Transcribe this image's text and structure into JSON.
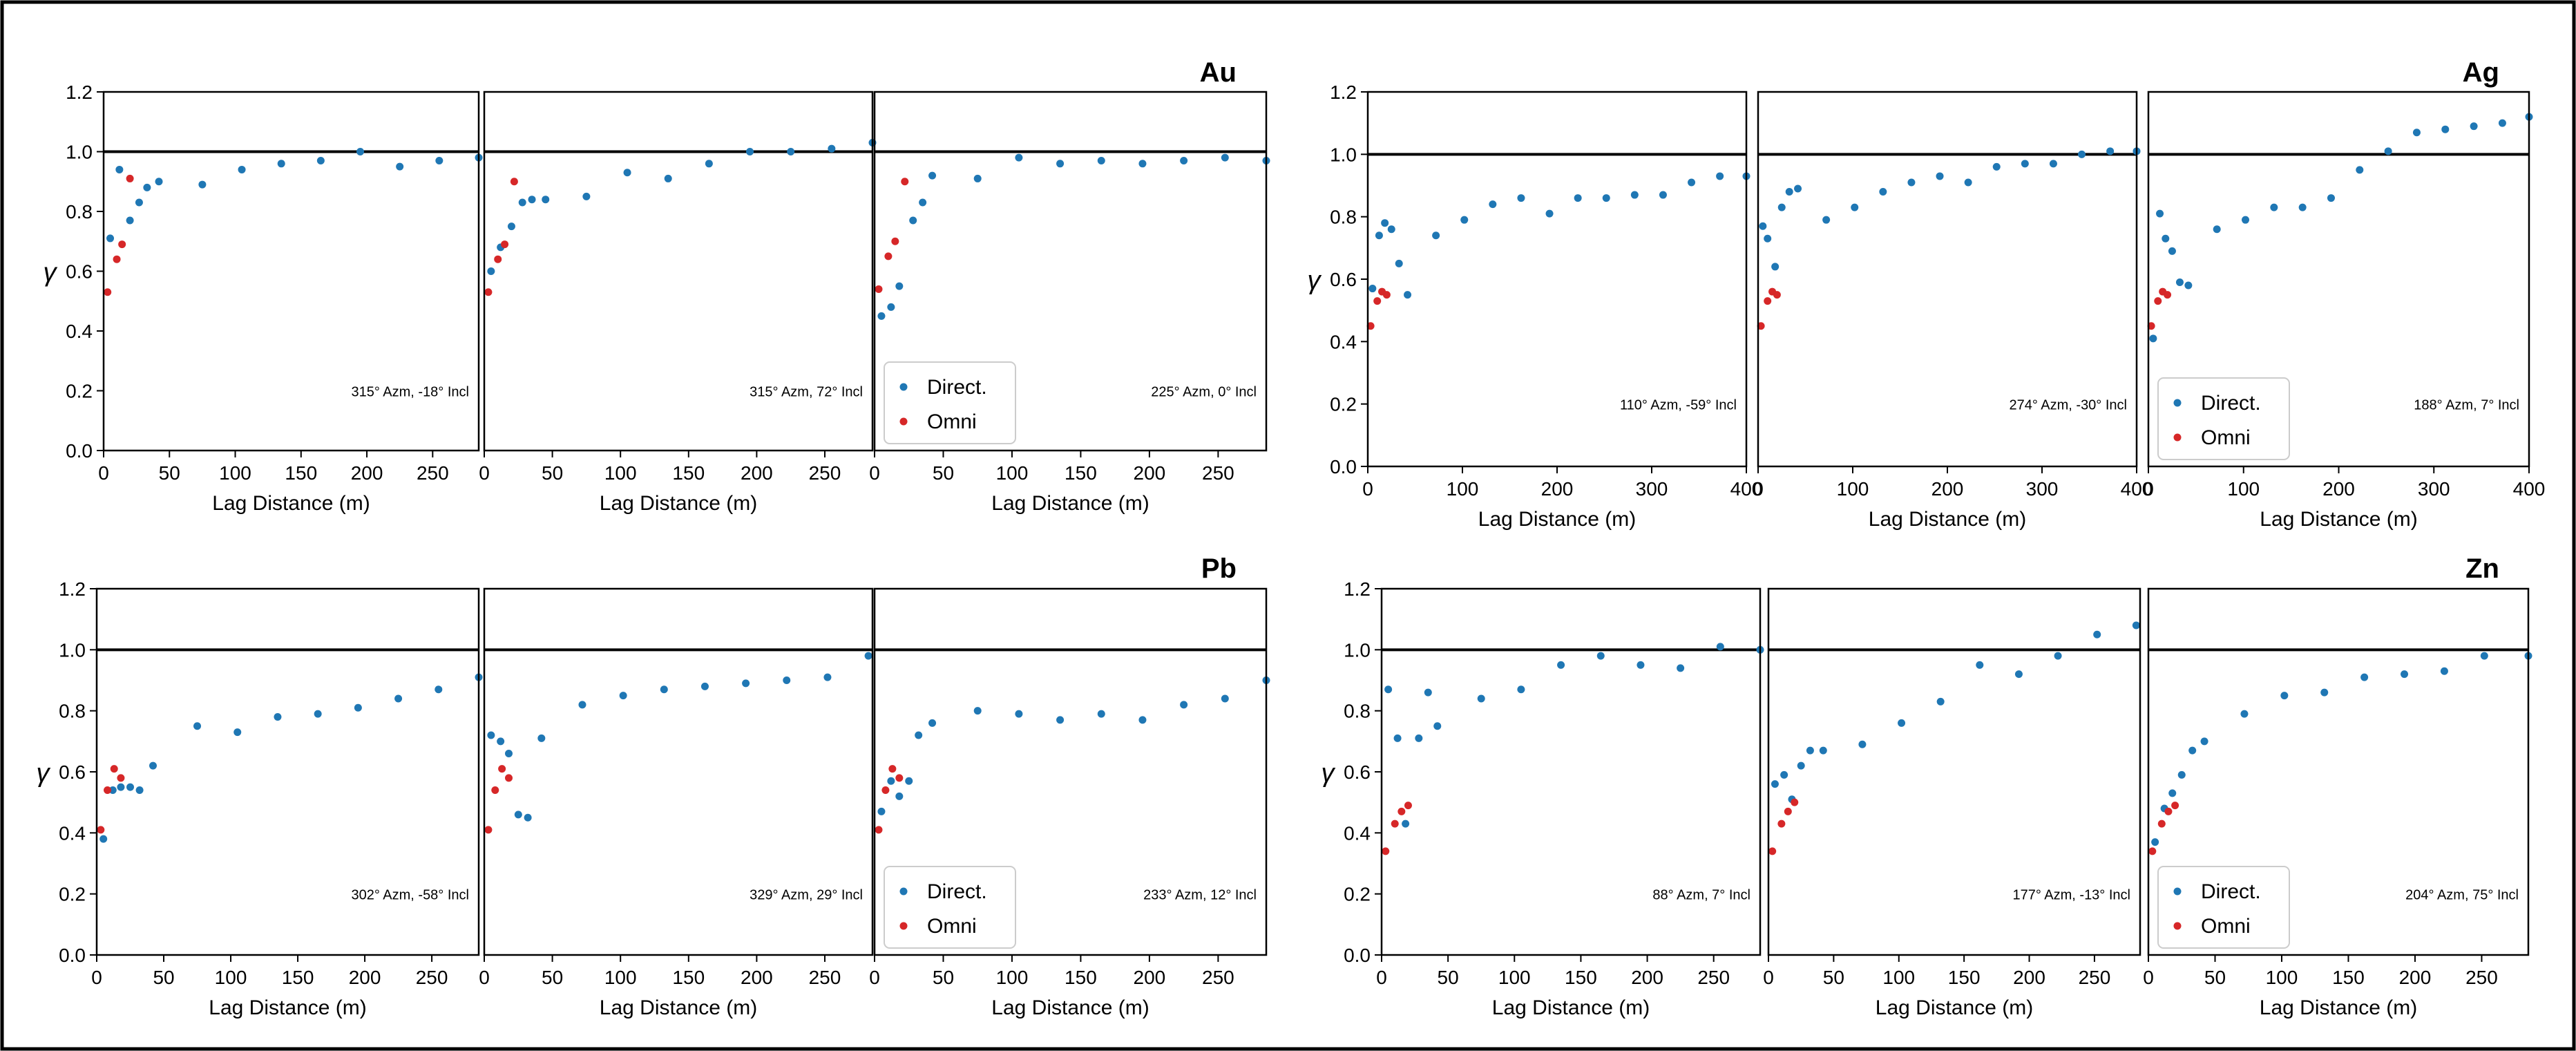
{
  "figure": {
    "border_color": "#000000",
    "background": "#ffffff"
  },
  "colors": {
    "direct": "#1f77b4",
    "omni": "#d62728",
    "sill": "#000000"
  },
  "chart_data": [
    {
      "element": "Au",
      "type": "scatter",
      "xlabel": "Lag Distance (m)",
      "ylabel": "γ",
      "ylim": [
        0,
        1.2
      ],
      "xlim": [
        0,
        285
      ],
      "yticks": [
        "0.0",
        "0.2",
        "0.4",
        "0.6",
        "0.8",
        "1.0",
        "1.2"
      ],
      "xticks": [
        "0",
        "50",
        "100",
        "150",
        "200",
        "250"
      ],
      "xtick_values": [
        0,
        50,
        100,
        150,
        200,
        250
      ],
      "sill": 1.0,
      "legend_panel": 2,
      "legend": [
        "Direct.",
        "Omni"
      ],
      "panels": [
        {
          "annotation": "315° Azm, -18° Incl",
          "direct": [
            [
              5,
              0.71
            ],
            [
              12,
              0.94
            ],
            [
              20,
              0.77
            ],
            [
              27,
              0.83
            ],
            [
              33,
              0.88
            ],
            [
              42,
              0.9
            ],
            [
              75,
              0.89
            ],
            [
              105,
              0.94
            ],
            [
              135,
              0.96
            ],
            [
              165,
              0.97
            ],
            [
              195,
              1.0
            ],
            [
              225,
              0.95
            ],
            [
              255,
              0.97
            ],
            [
              285,
              0.98
            ]
          ],
          "omni": [
            [
              3,
              0.53
            ],
            [
              10,
              0.64
            ],
            [
              14,
              0.69
            ],
            [
              20,
              0.91
            ]
          ]
        },
        {
          "annotation": "315° Azm, 72° Incl",
          "direct": [
            [
              5,
              0.6
            ],
            [
              12,
              0.68
            ],
            [
              20,
              0.75
            ],
            [
              28,
              0.83
            ],
            [
              35,
              0.84
            ],
            [
              45,
              0.84
            ],
            [
              75,
              0.85
            ],
            [
              105,
              0.93
            ],
            [
              135,
              0.91
            ],
            [
              165,
              0.96
            ],
            [
              195,
              1.0
            ],
            [
              225,
              1.0
            ],
            [
              255,
              1.01
            ],
            [
              285,
              1.03
            ]
          ],
          "omni": [
            [
              3,
              0.53
            ],
            [
              10,
              0.64
            ],
            [
              15,
              0.69
            ],
            [
              22,
              0.9
            ]
          ]
        },
        {
          "annotation": "225° Azm, 0° Incl",
          "direct": [
            [
              5,
              0.45
            ],
            [
              12,
              0.48
            ],
            [
              18,
              0.55
            ],
            [
              28,
              0.77
            ],
            [
              35,
              0.83
            ],
            [
              42,
              0.92
            ],
            [
              75,
              0.91
            ],
            [
              105,
              0.98
            ],
            [
              135,
              0.96
            ],
            [
              165,
              0.97
            ],
            [
              195,
              0.96
            ],
            [
              225,
              0.97
            ],
            [
              255,
              0.98
            ],
            [
              285,
              0.97
            ]
          ],
          "omni": [
            [
              3,
              0.54
            ],
            [
              10,
              0.65
            ],
            [
              15,
              0.7
            ],
            [
              22,
              0.9
            ]
          ]
        }
      ]
    },
    {
      "element": "Ag",
      "type": "scatter",
      "xlabel": "Lag Distance (m)",
      "ylabel": "γ",
      "ylim": [
        0,
        1.2
      ],
      "xlim": [
        0,
        400
      ],
      "yticks": [
        "0.0",
        "0.2",
        "0.4",
        "0.6",
        "0.8",
        "1.0",
        "1.2"
      ],
      "xticks": [
        "0",
        "100",
        "200",
        "300",
        "400"
      ],
      "xtick_values": [
        0,
        100,
        200,
        300,
        400
      ],
      "sill": 1.0,
      "legend_panel": 2,
      "legend": [
        "Direct.",
        "Omni"
      ],
      "panels": [
        {
          "annotation": "110° Azm, -59° Incl",
          "direct": [
            [
              5,
              0.57
            ],
            [
              12,
              0.74
            ],
            [
              18,
              0.78
            ],
            [
              25,
              0.76
            ],
            [
              33,
              0.65
            ],
            [
              42,
              0.55
            ],
            [
              72,
              0.74
            ],
            [
              102,
              0.79
            ],
            [
              132,
              0.84
            ],
            [
              162,
              0.86
            ],
            [
              192,
              0.81
            ],
            [
              222,
              0.86
            ],
            [
              252,
              0.86
            ],
            [
              282,
              0.87
            ],
            [
              312,
              0.87
            ],
            [
              342,
              0.91
            ],
            [
              372,
              0.93
            ],
            [
              400,
              0.93
            ]
          ],
          "omni": [
            [
              3,
              0.45
            ],
            [
              10,
              0.53
            ],
            [
              15,
              0.56
            ],
            [
              20,
              0.55
            ]
          ]
        },
        {
          "annotation": "274° Azm, -30° Incl",
          "direct": [
            [
              5,
              0.77
            ],
            [
              10,
              0.73
            ],
            [
              18,
              0.64
            ],
            [
              25,
              0.83
            ],
            [
              33,
              0.88
            ],
            [
              42,
              0.89
            ],
            [
              72,
              0.79
            ],
            [
              102,
              0.83
            ],
            [
              132,
              0.88
            ],
            [
              162,
              0.91
            ],
            [
              192,
              0.93
            ],
            [
              222,
              0.91
            ],
            [
              252,
              0.96
            ],
            [
              282,
              0.97
            ],
            [
              312,
              0.97
            ],
            [
              342,
              1.0
            ],
            [
              372,
              1.01
            ],
            [
              400,
              1.01
            ]
          ],
          "omni": [
            [
              3,
              0.45
            ],
            [
              10,
              0.53
            ],
            [
              15,
              0.56
            ],
            [
              20,
              0.55
            ]
          ]
        },
        {
          "annotation": "188° Azm, 7° Incl",
          "direct": [
            [
              5,
              0.41
            ],
            [
              12,
              0.81
            ],
            [
              18,
              0.73
            ],
            [
              25,
              0.69
            ],
            [
              33,
              0.59
            ],
            [
              42,
              0.58
            ],
            [
              72,
              0.76
            ],
            [
              102,
              0.79
            ],
            [
              132,
              0.83
            ],
            [
              162,
              0.83
            ],
            [
              192,
              0.86
            ],
            [
              222,
              0.95
            ],
            [
              252,
              1.01
            ],
            [
              282,
              1.07
            ],
            [
              312,
              1.08
            ],
            [
              342,
              1.09
            ],
            [
              372,
              1.1
            ],
            [
              400,
              1.12
            ]
          ],
          "omni": [
            [
              3,
              0.45
            ],
            [
              10,
              0.53
            ],
            [
              15,
              0.56
            ],
            [
              20,
              0.55
            ]
          ]
        }
      ]
    },
    {
      "element": "Pb",
      "type": "scatter",
      "xlabel": "Lag Distance (m)",
      "ylabel": "γ",
      "ylim": [
        0,
        1.2
      ],
      "xlim": [
        0,
        285
      ],
      "yticks": [
        "0.0",
        "0.2",
        "0.4",
        "0.6",
        "0.8",
        "1.0",
        "1.2"
      ],
      "xticks": [
        "0",
        "50",
        "100",
        "150",
        "200",
        "250"
      ],
      "xtick_values": [
        0,
        50,
        100,
        150,
        200,
        250
      ],
      "sill": 1.0,
      "legend_panel": 2,
      "legend": [
        "Direct.",
        "Omni"
      ],
      "panels": [
        {
          "annotation": "302° Azm, -58° Incl",
          "direct": [
            [
              5,
              0.38
            ],
            [
              12,
              0.54
            ],
            [
              18,
              0.55
            ],
            [
              25,
              0.55
            ],
            [
              32,
              0.54
            ],
            [
              42,
              0.62
            ],
            [
              75,
              0.75
            ],
            [
              105,
              0.73
            ],
            [
              135,
              0.78
            ],
            [
              165,
              0.79
            ],
            [
              195,
              0.81
            ],
            [
              225,
              0.84
            ],
            [
              255,
              0.87
            ],
            [
              285,
              0.91
            ]
          ],
          "omni": [
            [
              3,
              0.41
            ],
            [
              8,
              0.54
            ],
            [
              13,
              0.61
            ],
            [
              18,
              0.58
            ]
          ]
        },
        {
          "annotation": "329° Azm, 29° Incl",
          "direct": [
            [
              5,
              0.72
            ],
            [
              12,
              0.7
            ],
            [
              18,
              0.66
            ],
            [
              25,
              0.46
            ],
            [
              32,
              0.45
            ],
            [
              42,
              0.71
            ],
            [
              72,
              0.82
            ],
            [
              102,
              0.85
            ],
            [
              132,
              0.87
            ],
            [
              162,
              0.88
            ],
            [
              192,
              0.89
            ],
            [
              222,
              0.9
            ],
            [
              252,
              0.91
            ],
            [
              282,
              0.98
            ]
          ],
          "omni": [
            [
              3,
              0.41
            ],
            [
              8,
              0.54
            ],
            [
              13,
              0.61
            ],
            [
              18,
              0.58
            ]
          ]
        },
        {
          "annotation": "233° Azm, 12° Incl",
          "direct": [
            [
              5,
              0.47
            ],
            [
              12,
              0.57
            ],
            [
              18,
              0.52
            ],
            [
              25,
              0.57
            ],
            [
              32,
              0.72
            ],
            [
              42,
              0.76
            ],
            [
              75,
              0.8
            ],
            [
              105,
              0.79
            ],
            [
              135,
              0.77
            ],
            [
              165,
              0.79
            ],
            [
              195,
              0.77
            ],
            [
              225,
              0.82
            ],
            [
              255,
              0.84
            ],
            [
              285,
              0.9
            ]
          ],
          "omni": [
            [
              3,
              0.41
            ],
            [
              8,
              0.54
            ],
            [
              13,
              0.61
            ],
            [
              18,
              0.58
            ]
          ]
        }
      ]
    },
    {
      "element": "Zn",
      "type": "scatter",
      "xlabel": "Lag Distance (m)",
      "ylabel": "γ",
      "ylim": [
        0,
        1.2
      ],
      "xlim": [
        0,
        285
      ],
      "yticks": [
        "0.0",
        "0.2",
        "0.4",
        "0.6",
        "0.8",
        "1.0",
        "1.2"
      ],
      "xticks": [
        "0",
        "50",
        "100",
        "150",
        "200",
        "250"
      ],
      "xtick_values": [
        0,
        50,
        100,
        150,
        200,
        250
      ],
      "sill": 1.0,
      "legend_panel": 2,
      "legend": [
        "Direct.",
        "Omni"
      ],
      "panels": [
        {
          "annotation": "88° Azm, 7° Incl",
          "direct": [
            [
              5,
              0.87
            ],
            [
              12,
              0.71
            ],
            [
              18,
              0.43
            ],
            [
              28,
              0.71
            ],
            [
              35,
              0.86
            ],
            [
              42,
              0.75
            ],
            [
              75,
              0.84
            ],
            [
              105,
              0.87
            ],
            [
              135,
              0.95
            ],
            [
              165,
              0.98
            ],
            [
              195,
              0.95
            ],
            [
              225,
              0.94
            ],
            [
              255,
              1.01
            ],
            [
              285,
              1.0
            ]
          ],
          "omni": [
            [
              3,
              0.34
            ],
            [
              10,
              0.43
            ],
            [
              15,
              0.47
            ],
            [
              20,
              0.49
            ]
          ]
        },
        {
          "annotation": "177° Azm, -13° Incl",
          "direct": [
            [
              5,
              0.56
            ],
            [
              12,
              0.59
            ],
            [
              18,
              0.51
            ],
            [
              25,
              0.62
            ],
            [
              32,
              0.67
            ],
            [
              42,
              0.67
            ],
            [
              72,
              0.69
            ],
            [
              102,
              0.76
            ],
            [
              132,
              0.83
            ],
            [
              162,
              0.95
            ],
            [
              192,
              0.92
            ],
            [
              222,
              0.98
            ],
            [
              252,
              1.05
            ],
            [
              282,
              1.08
            ]
          ],
          "omni": [
            [
              3,
              0.34
            ],
            [
              10,
              0.43
            ],
            [
              15,
              0.47
            ],
            [
              20,
              0.5
            ]
          ]
        },
        {
          "annotation": "204° Azm, 75° Incl",
          "direct": [
            [
              5,
              0.37
            ],
            [
              12,
              0.48
            ],
            [
              18,
              0.53
            ],
            [
              25,
              0.59
            ],
            [
              33,
              0.67
            ],
            [
              42,
              0.7
            ],
            [
              72,
              0.79
            ],
            [
              102,
              0.85
            ],
            [
              132,
              0.86
            ],
            [
              162,
              0.91
            ],
            [
              192,
              0.92
            ],
            [
              222,
              0.93
            ],
            [
              252,
              0.98
            ],
            [
              285,
              0.98
            ]
          ],
          "omni": [
            [
              3,
              0.34
            ],
            [
              10,
              0.43
            ],
            [
              15,
              0.47
            ],
            [
              20,
              0.49
            ]
          ]
        }
      ]
    }
  ]
}
